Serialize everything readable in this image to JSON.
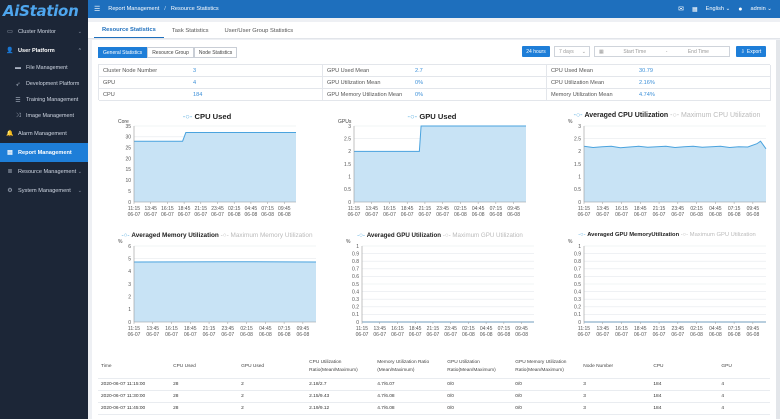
{
  "app": {
    "logo": "AiStation"
  },
  "sidebar": {
    "items": [
      {
        "label": "Cluster Monitor",
        "icon": "monitor-icon",
        "chev": "⌄"
      },
      {
        "label": "User Platform",
        "icon": "users-icon",
        "chev": "⌃"
      },
      {
        "label": "File Management",
        "icon": "folder-icon"
      },
      {
        "label": "Development Platform",
        "icon": "rocket-icon"
      },
      {
        "label": "Training Management",
        "icon": "list-icon"
      },
      {
        "label": "Image Management",
        "icon": "shuffle-icon"
      },
      {
        "label": "Alarm Management",
        "icon": "bell-icon"
      },
      {
        "label": "Report Management",
        "icon": "report-icon"
      },
      {
        "label": "Resource Management",
        "icon": "layers-icon",
        "chev": "⌄"
      },
      {
        "label": "System Management",
        "icon": "gear-icon",
        "chev": "⌄"
      }
    ]
  },
  "topbar": {
    "breadcrumb1": "Report Management",
    "sep": "/",
    "breadcrumb2": "Resource Statistics",
    "lang": "English",
    "user": "admin"
  },
  "tabs": [
    "Resource Statistics",
    "Task Statistics",
    "User/User Group Statistics"
  ],
  "filters": {
    "segments": [
      "General Statistics",
      "Resource Group",
      "Node Statistics"
    ],
    "range_btn": "24 hours",
    "days_placeholder": "7 days",
    "start_placeholder": "Start Time",
    "sep": "-",
    "end_placeholder": "End Time",
    "export": "Export"
  },
  "stats": [
    {
      "k": "Cluster Node Number",
      "v": "3"
    },
    {
      "k": "GPU",
      "v": "4"
    },
    {
      "k": "CPU",
      "v": "184"
    },
    {
      "k": "GPU Used Mean",
      "v": "2.7"
    },
    {
      "k": "GPU Utilization Mean",
      "v": "0%"
    },
    {
      "k": "GPU Memory Utilization Mean",
      "v": "0%"
    },
    {
      "k": "CPU Used Mean",
      "v": "30.79"
    },
    {
      "k": "CPU Utilization Mean",
      "v": "2.16%"
    },
    {
      "k": "Memory Utilization Mean",
      "v": "4.74%"
    }
  ],
  "chart_data": [
    {
      "type": "area",
      "title": "CPU Used",
      "legend": [
        "CPU Used"
      ],
      "yunit": "Core",
      "ylim": [
        0,
        35
      ],
      "yticks": [
        0,
        5,
        10,
        15,
        20,
        25,
        30,
        35
      ],
      "x": [
        "11:15 06-07",
        "13:45 06-07",
        "16:15 06-07",
        "18:45 06-07",
        "21:15 06-07",
        "23:45 06-07",
        "02:15 06-08",
        "04:45 06-08",
        "07:15 06-08",
        "09:45 06-08"
      ],
      "series": [
        {
          "name": "CPU Used",
          "points": [
            [
              0,
              28
            ],
            [
              0.3,
              28
            ],
            [
              0.32,
              32
            ],
            [
              1,
              32
            ]
          ]
        }
      ]
    },
    {
      "type": "area",
      "title": "GPU Used",
      "legend": [
        "GPU Used"
      ],
      "yunit": "GPUs",
      "ylim": [
        0,
        3
      ],
      "yticks": [
        0,
        0.5,
        1,
        1.5,
        2,
        2.5,
        3
      ],
      "x": [
        "11:15 06-07",
        "13:45 06-07",
        "16:15 06-07",
        "18:45 06-07",
        "21:15 06-07",
        "23:45 06-07",
        "02:15 06-08",
        "04:45 06-08",
        "07:15 06-08",
        "09:45 06-08"
      ],
      "series": [
        {
          "name": "GPU Used",
          "points": [
            [
              0,
              2
            ],
            [
              0.38,
              2
            ],
            [
              0.39,
              3
            ],
            [
              1,
              3
            ]
          ]
        }
      ]
    },
    {
      "type": "area",
      "title": "Averaged CPU Utilization",
      "legend": [
        "Averaged CPU Utilization",
        "Maximum CPU Utilization"
      ],
      "yunit": "%",
      "ylim": [
        0,
        3
      ],
      "yticks": [
        0,
        0.5,
        1,
        1.5,
        2,
        2.5,
        3
      ],
      "x": [
        "11:15 06-07",
        "13:45 06-07",
        "16:15 06-07",
        "18:45 06-07",
        "21:15 06-07",
        "23:45 06-07",
        "02:15 06-08",
        "04:45 06-08",
        "07:15 06-08",
        "09:45 06-08"
      ],
      "series": [
        {
          "name": "Averaged CPU Utilization",
          "points": [
            [
              0,
              2.2
            ],
            [
              0.05,
              2.15
            ],
            [
              0.1,
              2.18
            ],
            [
              0.15,
              2.2
            ],
            [
              0.2,
              2.14
            ],
            [
              0.25,
              2.17
            ],
            [
              0.3,
              2.2
            ],
            [
              0.35,
              2.16
            ],
            [
              0.4,
              2.18
            ],
            [
              0.45,
              2.2
            ],
            [
              0.5,
              2.15
            ],
            [
              0.55,
              2.18
            ],
            [
              0.6,
              2.2
            ],
            [
              0.65,
              2.16
            ],
            [
              0.7,
              2.18
            ],
            [
              0.75,
              2.2
            ],
            [
              0.8,
              2.15
            ],
            [
              0.85,
              2.18
            ],
            [
              0.9,
              2.17
            ],
            [
              0.95,
              2.3
            ],
            [
              0.97,
              2.4
            ],
            [
              1,
              2.1
            ]
          ]
        }
      ]
    },
    {
      "type": "area",
      "title": "Averaged Memory Utilization",
      "legend": [
        "Averaged Memory Utilization",
        "Maximum Memory Utilization"
      ],
      "yunit": "%",
      "ylim": [
        0,
        6
      ],
      "yticks": [
        0,
        1,
        2,
        3,
        4,
        5,
        6
      ],
      "x": [
        "11:15 06-07",
        "13:45 06-07",
        "16:15 06-07",
        "18:45 06-07",
        "21:15 06-07",
        "23:45 06-07",
        "02:15 06-08",
        "04:45 06-08",
        "07:15 06-08",
        "09:45 06-08"
      ],
      "series": [
        {
          "name": "Averaged Memory Utilization",
          "points": [
            [
              0,
              4.74
            ],
            [
              0.5,
              4.76
            ],
            [
              1,
              4.74
            ]
          ]
        }
      ]
    },
    {
      "type": "area",
      "title": "Averaged GPU Utilization",
      "legend": [
        "Averaged GPU Utilization",
        "Maximum GPU Utilization"
      ],
      "yunit": "%",
      "ylim": [
        0,
        1
      ],
      "yticks": [
        0,
        0.1,
        0.2,
        0.3,
        0.4,
        0.5,
        0.6,
        0.7,
        0.8,
        0.9,
        1
      ],
      "x": [
        "11:15 06-07",
        "13:45 06-07",
        "16:15 06-07",
        "18:45 06-07",
        "21:15 06-07",
        "23:45 06-07",
        "02:15 06-08",
        "04:45 06-08",
        "07:15 06-08",
        "09:45 06-08"
      ],
      "series": [
        {
          "name": "Averaged GPU Utilization",
          "points": [
            [
              0,
              0
            ],
            [
              1,
              0
            ]
          ]
        }
      ]
    },
    {
      "type": "area",
      "title": "Averaged GPU MemoryUtilization",
      "legend": [
        "Averaged GPU MemoryUtilization",
        "Maximum GPU Utilization"
      ],
      "yunit": "%",
      "ylim": [
        0,
        1
      ],
      "yticks": [
        0,
        0.1,
        0.2,
        0.3,
        0.4,
        0.5,
        0.6,
        0.7,
        0.8,
        0.9,
        1
      ],
      "x": [
        "11:15 06-07",
        "13:45 06-07",
        "16:15 06-07",
        "18:45 06-07",
        "21:15 06-07",
        "23:45 06-07",
        "02:15 06-08",
        "04:45 06-08",
        "07:15 06-08",
        "09:45 06-08"
      ],
      "series": [
        {
          "name": "Averaged GPU MemoryUtilization",
          "points": [
            [
              0,
              0
            ],
            [
              1,
              0
            ]
          ]
        }
      ]
    }
  ],
  "table": {
    "headers": [
      "Time",
      "CPU Used",
      "GPU Used",
      "CPU Utilization Ratio(Mean/Maximum)",
      "Memory Utilization Ratio (Mean/Maximum)",
      "GPU Utilization Ratio(Mean/Maximum)",
      "GPU Memory Utilization Ratio(Mean/Maximum)",
      "Node Number",
      "CPU",
      "GPU"
    ],
    "rows": [
      [
        "2020-06-07 11:15:00",
        "28",
        "2",
        "2.18/2.7",
        "4.7/6.07",
        "0/0",
        "0/0",
        "3",
        "184",
        "4"
      ],
      [
        "2020-06-07 11:30:00",
        "28",
        "2",
        "2.15/9.43",
        "4.7/6.08",
        "0/0",
        "0/0",
        "3",
        "184",
        "4"
      ],
      [
        "2020-06-07 11:45:00",
        "28",
        "2",
        "2.19/9.12",
        "4.7/6.08",
        "0/0",
        "0/0",
        "3",
        "184",
        "4"
      ]
    ]
  },
  "colors": {
    "accent": "#1e7ed8",
    "sidebar": "#1c2637",
    "area": "#c8e3f5",
    "line": "#4aa3de"
  }
}
